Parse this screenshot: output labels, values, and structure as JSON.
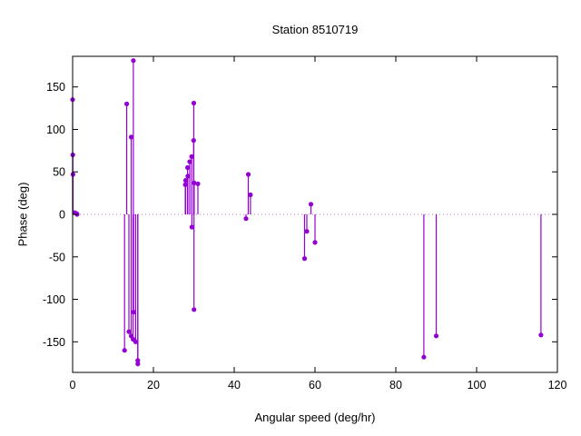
{
  "window": {
    "background": "#ffffff"
  },
  "chart_data": {
    "type": "stem",
    "title": "Station 8510719",
    "xlabel": "Angular speed (deg/hr)",
    "ylabel": "Phase (deg)",
    "xlim": [
      0,
      120
    ],
    "ylim": [
      -186,
      186
    ],
    "xticks": [
      0,
      20,
      40,
      60,
      80,
      100,
      120
    ],
    "yticks": [
      -150,
      -100,
      -50,
      0,
      50,
      100,
      150
    ],
    "grid": false,
    "legend": "none",
    "zero_line": true,
    "colors": {
      "series": "#9400d3",
      "zero_line": "#bb77cc",
      "frame": "#000000",
      "text": "#000000"
    },
    "points": [
      [
        0.0,
        135
      ],
      [
        0.041,
        70
      ],
      [
        0.082,
        47
      ],
      [
        0.544,
        2
      ],
      [
        1.016,
        1
      ],
      [
        1.098,
        0
      ],
      [
        12.854,
        -160
      ],
      [
        13.399,
        130
      ],
      [
        13.943,
        -138
      ],
      [
        14.492,
        -143
      ],
      [
        14.497,
        91
      ],
      [
        14.959,
        -147
      ],
      [
        15.041,
        181
      ],
      [
        15.082,
        -115
      ],
      [
        15.585,
        -150
      ],
      [
        16.139,
        -172
      ],
      [
        16.14,
        -176
      ],
      [
        27.895,
        35
      ],
      [
        27.968,
        40
      ],
      [
        28.439,
        55
      ],
      [
        28.512,
        45
      ],
      [
        28.984,
        62
      ],
      [
        29.456,
        68
      ],
      [
        29.528,
        -15
      ],
      [
        29.959,
        87
      ],
      [
        30.0,
        131
      ],
      [
        30.041,
        -112
      ],
      [
        30.082,
        37
      ],
      [
        31.016,
        36
      ],
      [
        42.927,
        -5
      ],
      [
        43.476,
        47
      ],
      [
        44.025,
        23
      ],
      [
        57.423,
        -52
      ],
      [
        57.968,
        -20
      ],
      [
        58.984,
        12
      ],
      [
        60.0,
        -33
      ],
      [
        86.952,
        -168
      ],
      [
        90.0,
        -143
      ],
      [
        115.936,
        -142
      ]
    ]
  }
}
